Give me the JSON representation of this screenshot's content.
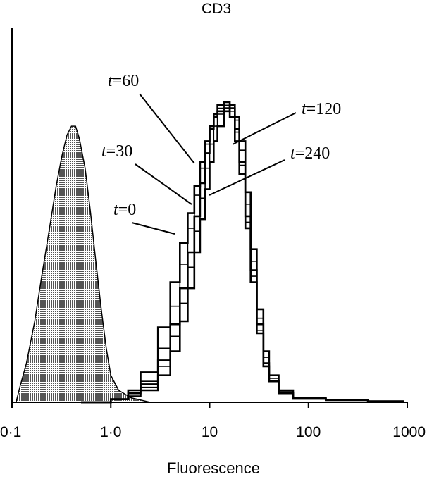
{
  "chart_data": {
    "type": "line",
    "title": "CD3",
    "xlabel": "Fluorescence",
    "ylabel": "",
    "x_scale": "log",
    "xlim": [
      0.1,
      1000
    ],
    "ylim": [
      0,
      1
    ],
    "grid": false,
    "x_ticks": [
      {
        "value": 0.1,
        "label": "0·1"
      },
      {
        "value": 1,
        "label": "1·0"
      },
      {
        "value": 10,
        "label": "10"
      },
      {
        "value": 100,
        "label": "100"
      },
      {
        "value": 1000,
        "label": "1000"
      }
    ],
    "control": {
      "filled": true,
      "color": "#9a9a9a",
      "points": [
        [
          0.11,
          0.0
        ],
        [
          0.12,
          0.05
        ],
        [
          0.14,
          0.13
        ],
        [
          0.17,
          0.27
        ],
        [
          0.2,
          0.42
        ],
        [
          0.24,
          0.58
        ],
        [
          0.28,
          0.72
        ],
        [
          0.32,
          0.82
        ],
        [
          0.36,
          0.89
        ],
        [
          0.4,
          0.92
        ],
        [
          0.44,
          0.92
        ],
        [
          0.48,
          0.88
        ],
        [
          0.55,
          0.78
        ],
        [
          0.62,
          0.64
        ],
        [
          0.7,
          0.48
        ],
        [
          0.8,
          0.31
        ],
        [
          0.9,
          0.18
        ],
        [
          1.0,
          0.09
        ],
        [
          1.2,
          0.04
        ],
        [
          1.6,
          0.015
        ],
        [
          2.5,
          0.0
        ]
      ]
    },
    "series": [
      {
        "name": "t=0",
        "label": {
          "t": "t",
          "rest": "=0"
        },
        "points": [
          [
            0.5,
            0.0
          ],
          [
            1.0,
            0.01
          ],
          [
            1.5,
            0.04
          ],
          [
            2.0,
            0.1
          ],
          [
            3.0,
            0.25
          ],
          [
            4.0,
            0.4
          ],
          [
            5.0,
            0.53
          ],
          [
            6.0,
            0.63
          ],
          [
            7.0,
            0.72
          ],
          [
            8.0,
            0.8
          ],
          [
            9.0,
            0.87
          ],
          [
            10.0,
            0.92
          ],
          [
            11.0,
            0.95
          ],
          [
            12.0,
            0.97
          ],
          [
            14.0,
            0.98
          ],
          [
            16.0,
            0.95
          ],
          [
            18.0,
            0.87
          ],
          [
            20.0,
            0.76
          ],
          [
            23.0,
            0.58
          ],
          [
            26.0,
            0.4
          ],
          [
            30.0,
            0.23
          ],
          [
            35.0,
            0.12
          ],
          [
            40.0,
            0.07
          ],
          [
            50.0,
            0.03
          ],
          [
            70.0,
            0.012
          ],
          [
            150.0,
            0.008
          ],
          [
            400.0,
            0.003
          ],
          [
            900.0,
            0.0
          ]
        ]
      },
      {
        "name": "t=30",
        "label": {
          "t": "t",
          "rest": "=30"
        },
        "points": [
          [
            0.5,
            0.0
          ],
          [
            1.0,
            0.01
          ],
          [
            1.5,
            0.03
          ],
          [
            2.0,
            0.07
          ],
          [
            3.0,
            0.18
          ],
          [
            4.0,
            0.32
          ],
          [
            5.0,
            0.46
          ],
          [
            6.0,
            0.58
          ],
          [
            7.0,
            0.69
          ],
          [
            8.0,
            0.78
          ],
          [
            9.0,
            0.86
          ],
          [
            10.0,
            0.91
          ],
          [
            11.0,
            0.95
          ],
          [
            12.0,
            0.98
          ],
          [
            14.0,
            0.99
          ],
          [
            16.0,
            0.97
          ],
          [
            18.0,
            0.9
          ],
          [
            20.0,
            0.79
          ],
          [
            23.0,
            0.6
          ],
          [
            26.0,
            0.42
          ],
          [
            30.0,
            0.24
          ],
          [
            35.0,
            0.12
          ],
          [
            40.0,
            0.07
          ],
          [
            50.0,
            0.03
          ],
          [
            70.0,
            0.012
          ],
          [
            150.0,
            0.007
          ],
          [
            400.0,
            0.003
          ],
          [
            900.0,
            0.0
          ]
        ]
      },
      {
        "name": "t=60",
        "label": {
          "t": "t",
          "rest": "=60"
        },
        "points": [
          [
            0.5,
            0.0
          ],
          [
            1.0,
            0.01
          ],
          [
            1.5,
            0.03
          ],
          [
            2.0,
            0.06
          ],
          [
            3.0,
            0.14
          ],
          [
            4.0,
            0.26
          ],
          [
            5.0,
            0.38
          ],
          [
            6.0,
            0.5
          ],
          [
            7.0,
            0.62
          ],
          [
            8.0,
            0.73
          ],
          [
            9.0,
            0.83
          ],
          [
            10.0,
            0.91
          ],
          [
            11.0,
            0.96
          ],
          [
            12.0,
            0.99
          ],
          [
            14.0,
            1.0
          ],
          [
            16.0,
            0.98
          ],
          [
            18.0,
            0.91
          ],
          [
            20.0,
            0.8
          ],
          [
            23.0,
            0.62
          ],
          [
            26.0,
            0.44
          ],
          [
            30.0,
            0.26
          ],
          [
            35.0,
            0.13
          ],
          [
            40.0,
            0.07
          ],
          [
            50.0,
            0.03
          ],
          [
            70.0,
            0.012
          ],
          [
            150.0,
            0.007
          ],
          [
            400.0,
            0.003
          ],
          [
            900.0,
            0.0
          ]
        ]
      },
      {
        "name": "t=120",
        "label": {
          "t": "t",
          "rest": "=120"
        },
        "points": [
          [
            0.5,
            0.0
          ],
          [
            1.0,
            0.01
          ],
          [
            1.5,
            0.02
          ],
          [
            2.0,
            0.05
          ],
          [
            3.0,
            0.12
          ],
          [
            4.0,
            0.22
          ],
          [
            5.0,
            0.33
          ],
          [
            6.0,
            0.45
          ],
          [
            7.0,
            0.57
          ],
          [
            8.0,
            0.68
          ],
          [
            9.0,
            0.78
          ],
          [
            10.0,
            0.86
          ],
          [
            11.0,
            0.92
          ],
          [
            12.0,
            0.96
          ],
          [
            14.0,
            0.99
          ],
          [
            16.0,
            0.99
          ],
          [
            18.0,
            0.94
          ],
          [
            20.0,
            0.84
          ],
          [
            23.0,
            0.66
          ],
          [
            26.0,
            0.47
          ],
          [
            30.0,
            0.28
          ],
          [
            35.0,
            0.15
          ],
          [
            40.0,
            0.08
          ],
          [
            50.0,
            0.035
          ],
          [
            70.0,
            0.014
          ],
          [
            150.0,
            0.008
          ],
          [
            400.0,
            0.003
          ],
          [
            900.0,
            0.0
          ]
        ]
      },
      {
        "name": "t=240",
        "label": {
          "t": "t",
          "rest": "=240"
        },
        "points": [
          [
            0.5,
            0.0
          ],
          [
            1.0,
            0.01
          ],
          [
            1.5,
            0.02
          ],
          [
            2.0,
            0.04
          ],
          [
            3.0,
            0.09
          ],
          [
            4.0,
            0.17
          ],
          [
            5.0,
            0.27
          ],
          [
            6.0,
            0.38
          ],
          [
            7.0,
            0.5
          ],
          [
            8.0,
            0.61
          ],
          [
            9.0,
            0.71
          ],
          [
            10.0,
            0.8
          ],
          [
            11.0,
            0.87
          ],
          [
            12.0,
            0.92
          ],
          [
            14.0,
            0.97
          ],
          [
            16.0,
            0.99
          ],
          [
            18.0,
            0.95
          ],
          [
            20.0,
            0.87
          ],
          [
            23.0,
            0.7
          ],
          [
            26.0,
            0.51
          ],
          [
            30.0,
            0.31
          ],
          [
            35.0,
            0.17
          ],
          [
            40.0,
            0.09
          ],
          [
            50.0,
            0.04
          ],
          [
            70.0,
            0.015
          ],
          [
            150.0,
            0.008
          ],
          [
            400.0,
            0.003
          ],
          [
            900.0,
            0.0
          ]
        ]
      }
    ],
    "annotations": [
      {
        "series": "t=60",
        "t": "t",
        "rest": "=60"
      },
      {
        "series": "t=120",
        "t": "t",
        "rest": "=120"
      },
      {
        "series": "t=30",
        "t": "t",
        "rest": "=30"
      },
      {
        "series": "t=240",
        "t": "t",
        "rest": "=240"
      },
      {
        "series": "t=0",
        "t": "t",
        "rest": "=0"
      }
    ]
  }
}
